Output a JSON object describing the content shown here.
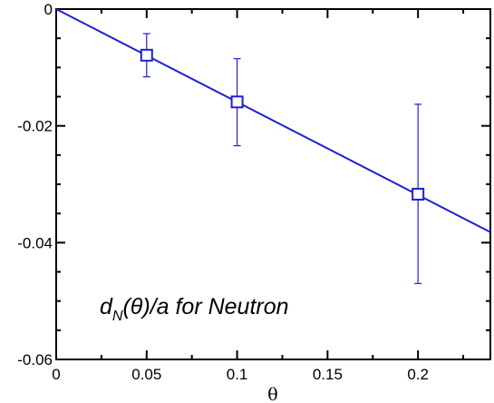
{
  "chart_data": {
    "type": "scatter",
    "xlabel": "θ",
    "ylabel": "",
    "xlim": [
      0,
      0.24
    ],
    "ylim": [
      -0.06,
      0
    ],
    "x_ticks": [
      0,
      0.05,
      0.1,
      0.15,
      0.2
    ],
    "x_tick_labels": [
      "0",
      "0.05",
      "0.1",
      "0.15",
      "0.2"
    ],
    "y_ticks": [
      0,
      -0.02,
      -0.04,
      -0.06
    ],
    "y_tick_labels": [
      "0",
      "-0.02",
      "-0.04",
      "-0.06"
    ],
    "grid": false,
    "series": [
      {
        "marker": "square",
        "color": "#1f1fd6",
        "points": [
          {
            "x": 0.05,
            "y": -0.0079,
            "err_low": -0.0116,
            "err_high": -0.0042
          },
          {
            "x": 0.1,
            "y": -0.0159,
            "err_low": -0.0234,
            "err_high": -0.0085
          },
          {
            "x": 0.2,
            "y": -0.0317,
            "err_low": -0.047,
            "err_high": -0.0163
          }
        ]
      }
    ],
    "fit_line": {
      "color": "#1f1fd6",
      "x": [
        0,
        0.24
      ],
      "y": [
        0,
        -0.0382
      ]
    },
    "annotation": {
      "d": "d",
      "subscript": "N",
      "rest": "(θ)/a for Neutron"
    }
  }
}
